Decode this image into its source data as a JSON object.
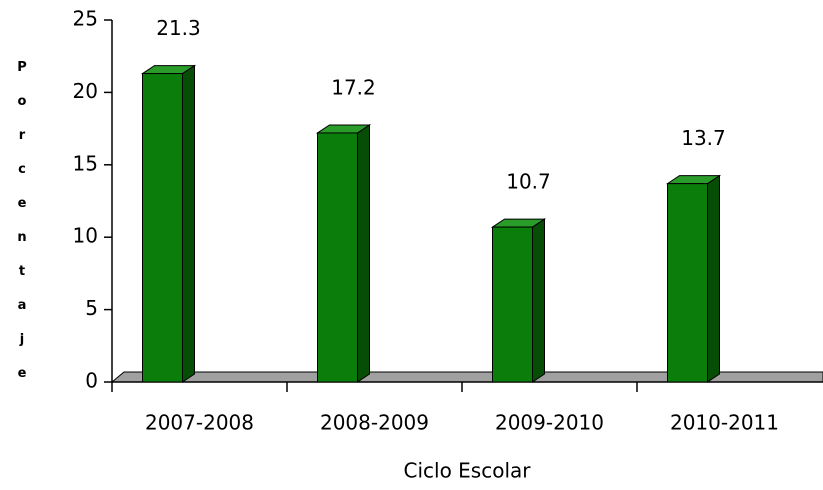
{
  "chart_data": {
    "type": "bar",
    "y_label": "Porcentaje",
    "x_label": "Ciclo Escolar",
    "categories": [
      "2007-2008",
      "2008-2009",
      "2009-2010",
      "2010-2011"
    ],
    "values": [
      21.3,
      17.2,
      10.7,
      13.7
    ],
    "color": "#0b7d0b",
    "ylim": [
      0,
      25
    ],
    "yticks": [
      0,
      5,
      10,
      15,
      20,
      25
    ]
  }
}
